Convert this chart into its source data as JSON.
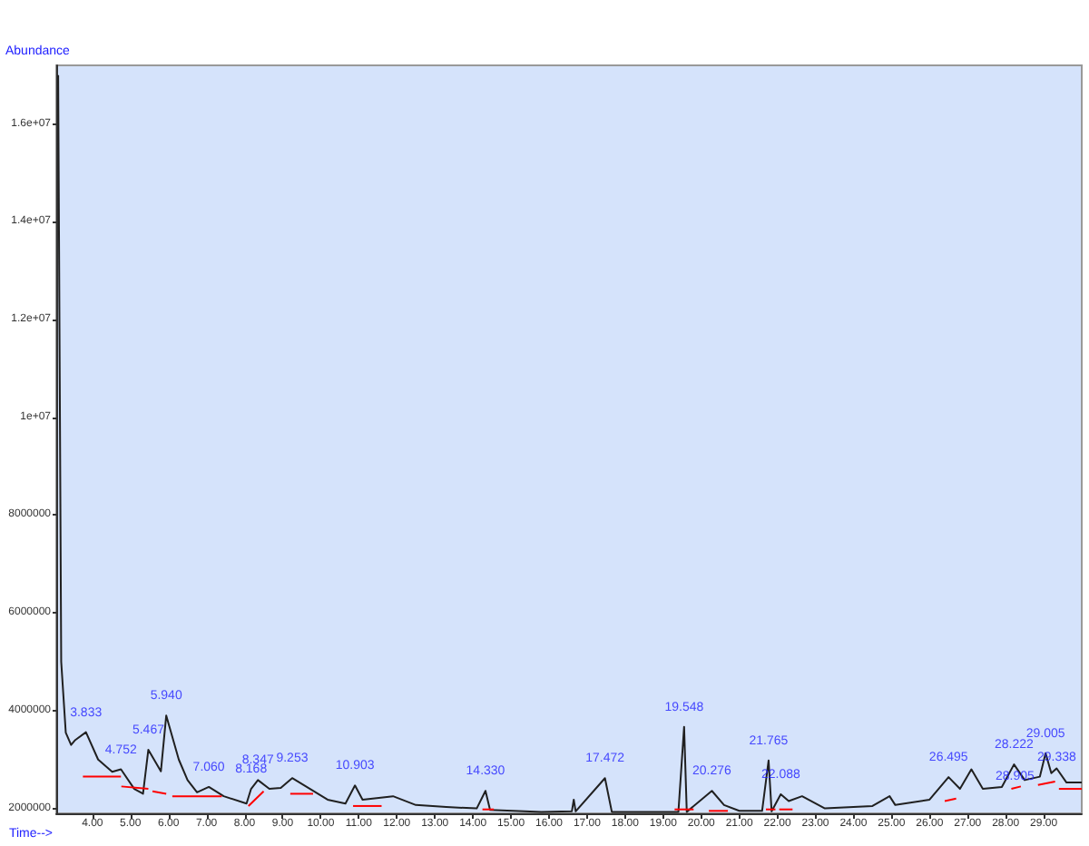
{
  "chart_data": {
    "type": "line",
    "xlabel": "Time-->",
    "ylabel": "Abundance",
    "xlim": [
      3.05,
      30.0
    ],
    "xticks": [
      {
        "value": 4,
        "label": "4.00"
      },
      {
        "value": 5,
        "label": "5.00"
      },
      {
        "value": 6,
        "label": "6.00"
      },
      {
        "value": 7,
        "label": "7.00"
      },
      {
        "value": 8,
        "label": "8.00"
      },
      {
        "value": 9,
        "label": "9.00"
      },
      {
        "value": 10,
        "label": "10.00"
      },
      {
        "value": 11,
        "label": "11.00"
      },
      {
        "value": 12,
        "label": "12.00"
      },
      {
        "value": 13,
        "label": "13.00"
      },
      {
        "value": 14,
        "label": "14.00"
      },
      {
        "value": 15,
        "label": "15.00"
      },
      {
        "value": 16,
        "label": "16.00"
      },
      {
        "value": 17,
        "label": "17.00"
      },
      {
        "value": 18,
        "label": "18.00"
      },
      {
        "value": 19,
        "label": "19.00"
      },
      {
        "value": 20,
        "label": "20.00"
      },
      {
        "value": 21,
        "label": "21.00"
      },
      {
        "value": 22,
        "label": "22.00"
      },
      {
        "value": 23,
        "label": "23.00"
      },
      {
        "value": 24,
        "label": "24.00"
      },
      {
        "value": 25,
        "label": "25.00"
      },
      {
        "value": 26,
        "label": "26.00"
      },
      {
        "value": 27,
        "label": "27.00"
      },
      {
        "value": 28,
        "label": "28.00"
      },
      {
        "value": 29,
        "label": "29.00"
      }
    ],
    "ylim": [
      1900000,
      17200000
    ],
    "yticks": [
      2000000,
      4000000,
      6000000,
      8000000,
      {
        "value": 10000000,
        "label": "1e+07"
      },
      {
        "value": 12000000,
        "label": "1.2e+07"
      },
      {
        "value": 14000000,
        "label": "1.4e+07"
      },
      {
        "value": 16000000,
        "label": "1.6e+07"
      }
    ],
    "grid": false,
    "marker": "none",
    "line_style": "solid",
    "series": [
      {
        "color": "#202020",
        "x": [
          3.1,
          3.18,
          3.3,
          3.44,
          3.55,
          3.83,
          4.15,
          4.52,
          4.75,
          5.1,
          5.33,
          5.47,
          5.8,
          5.94,
          6.27,
          6.5,
          6.75,
          7.06,
          7.45,
          8.05,
          8.17,
          8.35,
          8.65,
          8.95,
          9.25,
          9.72,
          10.18,
          10.65,
          10.9,
          11.1,
          11.9,
          12.5,
          13.3,
          14.1,
          14.33,
          14.45,
          15.8,
          16.6,
          16.65,
          16.7,
          17.47,
          17.65,
          19.4,
          19.55,
          19.62,
          20.28,
          20.6,
          21.0,
          21.6,
          21.77,
          21.85,
          22.09,
          22.3,
          22.65,
          23.25,
          24.5,
          24.95,
          25.1,
          26.0,
          26.5,
          26.8,
          27.1,
          27.4,
          27.9,
          28.22,
          28.5,
          28.9,
          29.05,
          29.2,
          29.34,
          29.6,
          30.0
        ],
        "values": [
          17000000,
          5000000,
          3550000,
          3300000,
          3400000,
          3560000,
          3000000,
          2750000,
          2800000,
          2400000,
          2300000,
          3200000,
          2760000,
          3900000,
          3000000,
          2580000,
          2330000,
          2440000,
          2250000,
          2100000,
          2400000,
          2580000,
          2400000,
          2420000,
          2620000,
          2400000,
          2180000,
          2100000,
          2470000,
          2180000,
          2250000,
          2070000,
          2030000,
          2000000,
          2360000,
          1970000,
          1930000,
          1940000,
          2180000,
          1940000,
          2620000,
          1930000,
          1930000,
          3670000,
          1930000,
          2360000,
          2070000,
          1950000,
          1950000,
          2980000,
          1940000,
          2290000,
          2150000,
          2250000,
          2000000,
          2050000,
          2250000,
          2070000,
          2180000,
          2640000,
          2400000,
          2800000,
          2400000,
          2440000,
          2900000,
          2580000,
          2650000,
          3130000,
          2720000,
          2820000,
          2530000,
          2530000
        ]
      },
      {
        "color": "#ff0000",
        "x": [
          3.75,
          4.75
        ],
        "values": [
          2650000,
          2650000
        ]
      },
      {
        "color": "#ff0000",
        "x": [
          4.76,
          5.47
        ],
        "values": [
          2450000,
          2400000
        ]
      },
      {
        "color": "#ff0000",
        "x": [
          5.58,
          5.94
        ],
        "values": [
          2350000,
          2300000
        ]
      },
      {
        "color": "#ff0000",
        "x": [
          6.1,
          7.4
        ],
        "values": [
          2250000,
          2250000
        ]
      },
      {
        "color": "#ff0000",
        "x": [
          8.1,
          8.5
        ],
        "values": [
          2050000,
          2350000
        ]
      },
      {
        "color": "#ff0000",
        "x": [
          9.2,
          9.8
        ],
        "values": [
          2300000,
          2300000
        ]
      },
      {
        "color": "#ff0000",
        "x": [
          10.85,
          11.6
        ],
        "values": [
          2050000,
          2050000
        ]
      },
      {
        "color": "#ff0000",
        "x": [
          14.25,
          14.55
        ],
        "values": [
          1980000,
          1980000
        ]
      },
      {
        "color": "#ff0000",
        "x": [
          19.3,
          19.8
        ],
        "values": [
          1980000,
          1980000
        ]
      },
      {
        "color": "#ff0000",
        "x": [
          20.2,
          20.7
        ],
        "values": [
          1950000,
          1950000
        ]
      },
      {
        "color": "#ff0000",
        "x": [
          21.7,
          21.95
        ],
        "values": [
          1980000,
          1980000
        ]
      },
      {
        "color": "#ff0000",
        "x": [
          22.05,
          22.4
        ],
        "values": [
          1980000,
          1980000
        ]
      },
      {
        "color": "#ff0000",
        "x": [
          26.4,
          26.7
        ],
        "values": [
          2150000,
          2200000
        ]
      },
      {
        "color": "#ff0000",
        "x": [
          28.15,
          28.4
        ],
        "values": [
          2400000,
          2450000
        ]
      },
      {
        "color": "#ff0000",
        "x": [
          28.85,
          29.3
        ],
        "values": [
          2480000,
          2550000
        ]
      },
      {
        "color": "#ff0000",
        "x": [
          29.4,
          30.0
        ],
        "values": [
          2400000,
          2400000
        ]
      }
    ],
    "annotations": [
      {
        "text": "3.833",
        "x": 3.83,
        "y": 3560000
      },
      {
        "text": "4.752",
        "x": 4.75,
        "y": 2800000
      },
      {
        "text": "5.467",
        "x": 5.47,
        "y": 3200000
      },
      {
        "text": "5.940",
        "x": 5.94,
        "y": 3900000
      },
      {
        "text": "7.060",
        "x": 7.06,
        "y": 2440000
      },
      {
        "text": "8.168",
        "x": 8.17,
        "y": 2400000
      },
      {
        "text": "8.347",
        "x": 8.35,
        "y": 2580000
      },
      {
        "text": "9.253",
        "x": 9.25,
        "y": 2620000
      },
      {
        "text": "10.903",
        "x": 10.9,
        "y": 2470000
      },
      {
        "text": "14.330",
        "x": 14.33,
        "y": 2360000
      },
      {
        "text": "17.472",
        "x": 17.47,
        "y": 2620000
      },
      {
        "text": "19.548",
        "x": 19.55,
        "y": 3670000
      },
      {
        "text": "20.276",
        "x": 20.28,
        "y": 2360000
      },
      {
        "text": "21.765",
        "x": 21.77,
        "y": 2980000
      },
      {
        "text": "22.088",
        "x": 22.09,
        "y": 2290000
      },
      {
        "text": "26.495",
        "x": 26.5,
        "y": 2640000
      },
      {
        "text": "28.222",
        "x": 28.22,
        "y": 2900000
      },
      {
        "text": "28.905",
        "x": 28.9,
        "y": 2650000
      },
      {
        "text": "29.005",
        "x": 29.05,
        "y": 3130000
      },
      {
        "text": "29.338",
        "x": 29.34,
        "y": 2820000
      }
    ]
  }
}
